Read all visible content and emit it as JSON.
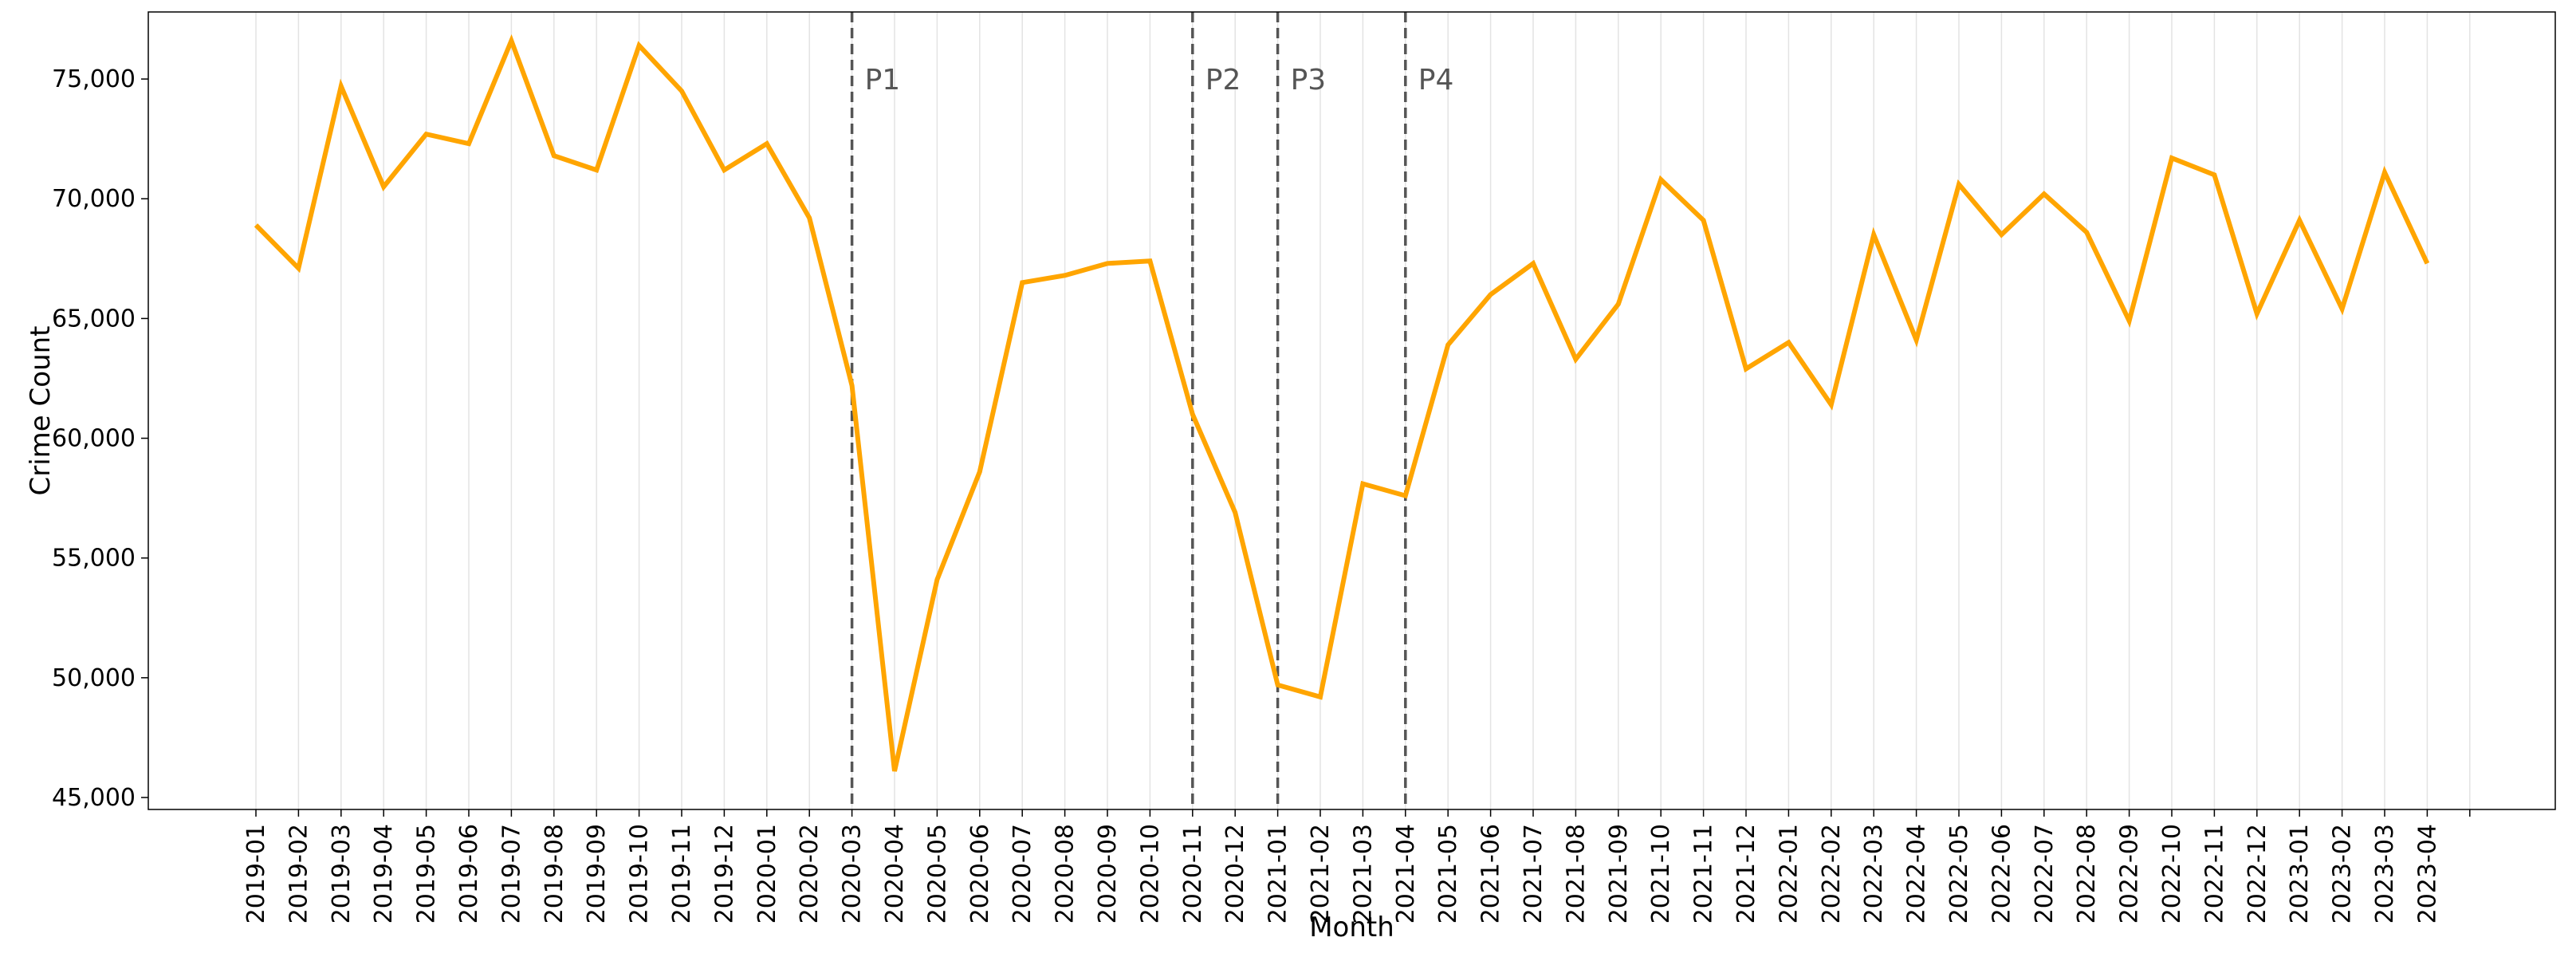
{
  "chart_data": {
    "type": "line",
    "xlabel": "Month",
    "ylabel": "Crime Count",
    "ylim": [
      44500,
      77800
    ],
    "yticks": [
      45000,
      50000,
      55000,
      60000,
      65000,
      70000,
      75000
    ],
    "ytick_labels": [
      "45,000",
      "50,000",
      "55,000",
      "60,000",
      "65,000",
      "70,000",
      "75,000"
    ],
    "grid": "vertical",
    "line_color": "#FFA500",
    "phase_line_color": "#555555",
    "categories": [
      "2019-01",
      "2019-02",
      "2019-03",
      "2019-04",
      "2019-05",
      "2019-06",
      "2019-07",
      "2019-08",
      "2019-09",
      "2019-10",
      "2019-11",
      "2019-12",
      "2020-01",
      "2020-02",
      "2020-03",
      "2020-04",
      "2020-05",
      "2020-06",
      "2020-07",
      "2020-08",
      "2020-09",
      "2020-10",
      "2020-11",
      "2020-12",
      "2021-01",
      "2021-02",
      "2021-03",
      "2021-04",
      "2021-05",
      "2021-06",
      "2021-07",
      "2021-08",
      "2021-09",
      "2021-10",
      "2021-11",
      "2021-12",
      "2022-01",
      "2022-02",
      "2022-03",
      "2022-04",
      "2022-05",
      "2022-06",
      "2022-07",
      "2022-08",
      "2022-09",
      "2022-10",
      "2022-11",
      "2022-12",
      "2023-01",
      "2023-02",
      "2023-03",
      "2023-04"
    ],
    "values": [
      68900,
      67100,
      74700,
      70500,
      72700,
      72300,
      76600,
      71800,
      71200,
      76400,
      74500,
      71200,
      72300,
      69200,
      62200,
      46100,
      54100,
      58600,
      66500,
      66800,
      67300,
      67400,
      61000,
      56900,
      49700,
      49200,
      58100,
      57600,
      63900,
      66000,
      67300,
      63300,
      65600,
      70800,
      69100,
      62900,
      64000,
      61400,
      68500,
      64100,
      70600,
      68500,
      70200,
      68600,
      64900,
      71700,
      71000,
      65200,
      69100,
      65400,
      71100,
      67300
    ],
    "phases": [
      {
        "label": "P1",
        "month": "2020-03"
      },
      {
        "label": "P2",
        "month": "2020-11"
      },
      {
        "label": "P3",
        "month": "2021-01"
      },
      {
        "label": "P4",
        "month": "2021-04"
      }
    ]
  }
}
